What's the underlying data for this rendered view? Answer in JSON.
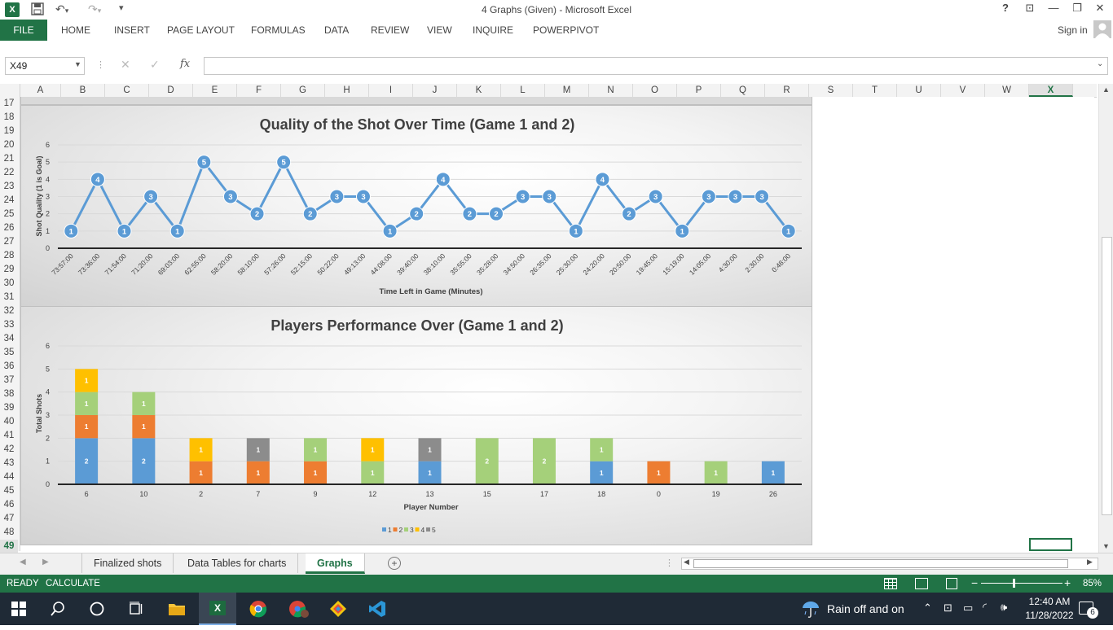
{
  "window": {
    "title": "4 Graphs (Given) - Microsoft Excel",
    "help": "?",
    "sign_in": "Sign in"
  },
  "ribbon": {
    "file": "FILE",
    "tabs": [
      "HOME",
      "INSERT",
      "PAGE LAYOUT",
      "FORMULAS",
      "DATA",
      "REVIEW",
      "VIEW",
      "INQUIRE",
      "POWERPIVOT"
    ]
  },
  "formula_bar": {
    "name_box": "X49",
    "fx": "fx",
    "value": ""
  },
  "grid": {
    "columns": [
      "A",
      "B",
      "C",
      "D",
      "E",
      "F",
      "G",
      "H",
      "I",
      "J",
      "K",
      "L",
      "M",
      "N",
      "O",
      "P",
      "Q",
      "R",
      "S",
      "T",
      "U",
      "V",
      "W",
      "X"
    ],
    "selected_column": "X",
    "rows": [
      "17",
      "18",
      "19",
      "20",
      "21",
      "22",
      "23",
      "24",
      "25",
      "26",
      "27",
      "28",
      "29",
      "30",
      "31",
      "32",
      "33",
      "34",
      "35",
      "36",
      "37",
      "38",
      "39",
      "40",
      "41",
      "42",
      "43",
      "44",
      "45",
      "46",
      "47",
      "48",
      "49"
    ],
    "selected_row": "49"
  },
  "chart_data": [
    {
      "type": "line",
      "title": "Quality of the Shot Over Time (Game 1 and 2)",
      "xlabel": "Time Left in Game (Minutes)",
      "ylabel": "Shot Quality (1 is Goal)",
      "ylim": [
        0,
        6
      ],
      "yticks": [
        "0",
        "1",
        "2",
        "3",
        "4",
        "5",
        "6"
      ],
      "grid": true,
      "categories": [
        "73:57:00",
        "73:36:00",
        "71:54:00",
        "71:20:00",
        "69:03:00",
        "62:55:00",
        "58:20:00",
        "58:10:00",
        "57:26:00",
        "52:15:00",
        "50:22:00",
        "49:13:00",
        "44:08:00",
        "39:40:00",
        "38:10:00",
        "35:55:00",
        "35:28:00",
        "34:50:00",
        "26:35:00",
        "25:30:00",
        "24:20:00",
        "20:50:00",
        "19:45:00",
        "15:19:00",
        "14:05:00",
        "4:30:00",
        "2:30:00",
        "0:48:00"
      ],
      "values": [
        1,
        4,
        1,
        3,
        1,
        5,
        3,
        2,
        5,
        2,
        3,
        3,
        1,
        2,
        4,
        2,
        2,
        3,
        3,
        1,
        4,
        2,
        3,
        1,
        3,
        3,
        3,
        1
      ],
      "color": "#5b9bd5"
    },
    {
      "type": "bar",
      "stacked": true,
      "title": "Players Performance Over (Game 1 and 2)",
      "xlabel": "Player Number",
      "ylabel": "Total Shots",
      "ylim": [
        0,
        6
      ],
      "yticks": [
        "0",
        "1",
        "2",
        "3",
        "4",
        "5",
        "6"
      ],
      "grid": true,
      "legend_position": "bottom",
      "categories": [
        "6",
        "10",
        "2",
        "7",
        "9",
        "12",
        "13",
        "15",
        "17",
        "18",
        "0",
        "19",
        "26"
      ],
      "series": [
        {
          "name": "1",
          "color": "#5b9bd5",
          "values": [
            2,
            2,
            0,
            0,
            0,
            0,
            1,
            0,
            0,
            1,
            0,
            0,
            1
          ]
        },
        {
          "name": "2",
          "color": "#ed7d31",
          "values": [
            1,
            1,
            1,
            1,
            1,
            0,
            0,
            0,
            0,
            0,
            1,
            0,
            0
          ]
        },
        {
          "name": "3",
          "color": "#a5d07a",
          "values": [
            1,
            1,
            0,
            0,
            1,
            1,
            0,
            2,
            2,
            1,
            0,
            1,
            0
          ]
        },
        {
          "name": "4",
          "color": "#ffc000",
          "values": [
            1,
            0,
            1,
            0,
            0,
            1,
            0,
            0,
            0,
            0,
            0,
            0,
            0
          ]
        },
        {
          "name": "5",
          "color": "#8c8c8c",
          "values": [
            0,
            0,
            0,
            1,
            0,
            0,
            1,
            0,
            0,
            0,
            0,
            0,
            0
          ]
        }
      ]
    }
  ],
  "sheet_tabs": [
    "Finalized shots",
    "Data Tables for charts",
    "Graphs"
  ],
  "active_sheet": "Graphs",
  "status": {
    "ready": "READY",
    "calculate": "CALCULATE",
    "zoom": "85%"
  },
  "taskbar": {
    "weather": "Rain off and on",
    "time": "12:40 AM",
    "date": "11/28/2022",
    "notifications": "6"
  }
}
